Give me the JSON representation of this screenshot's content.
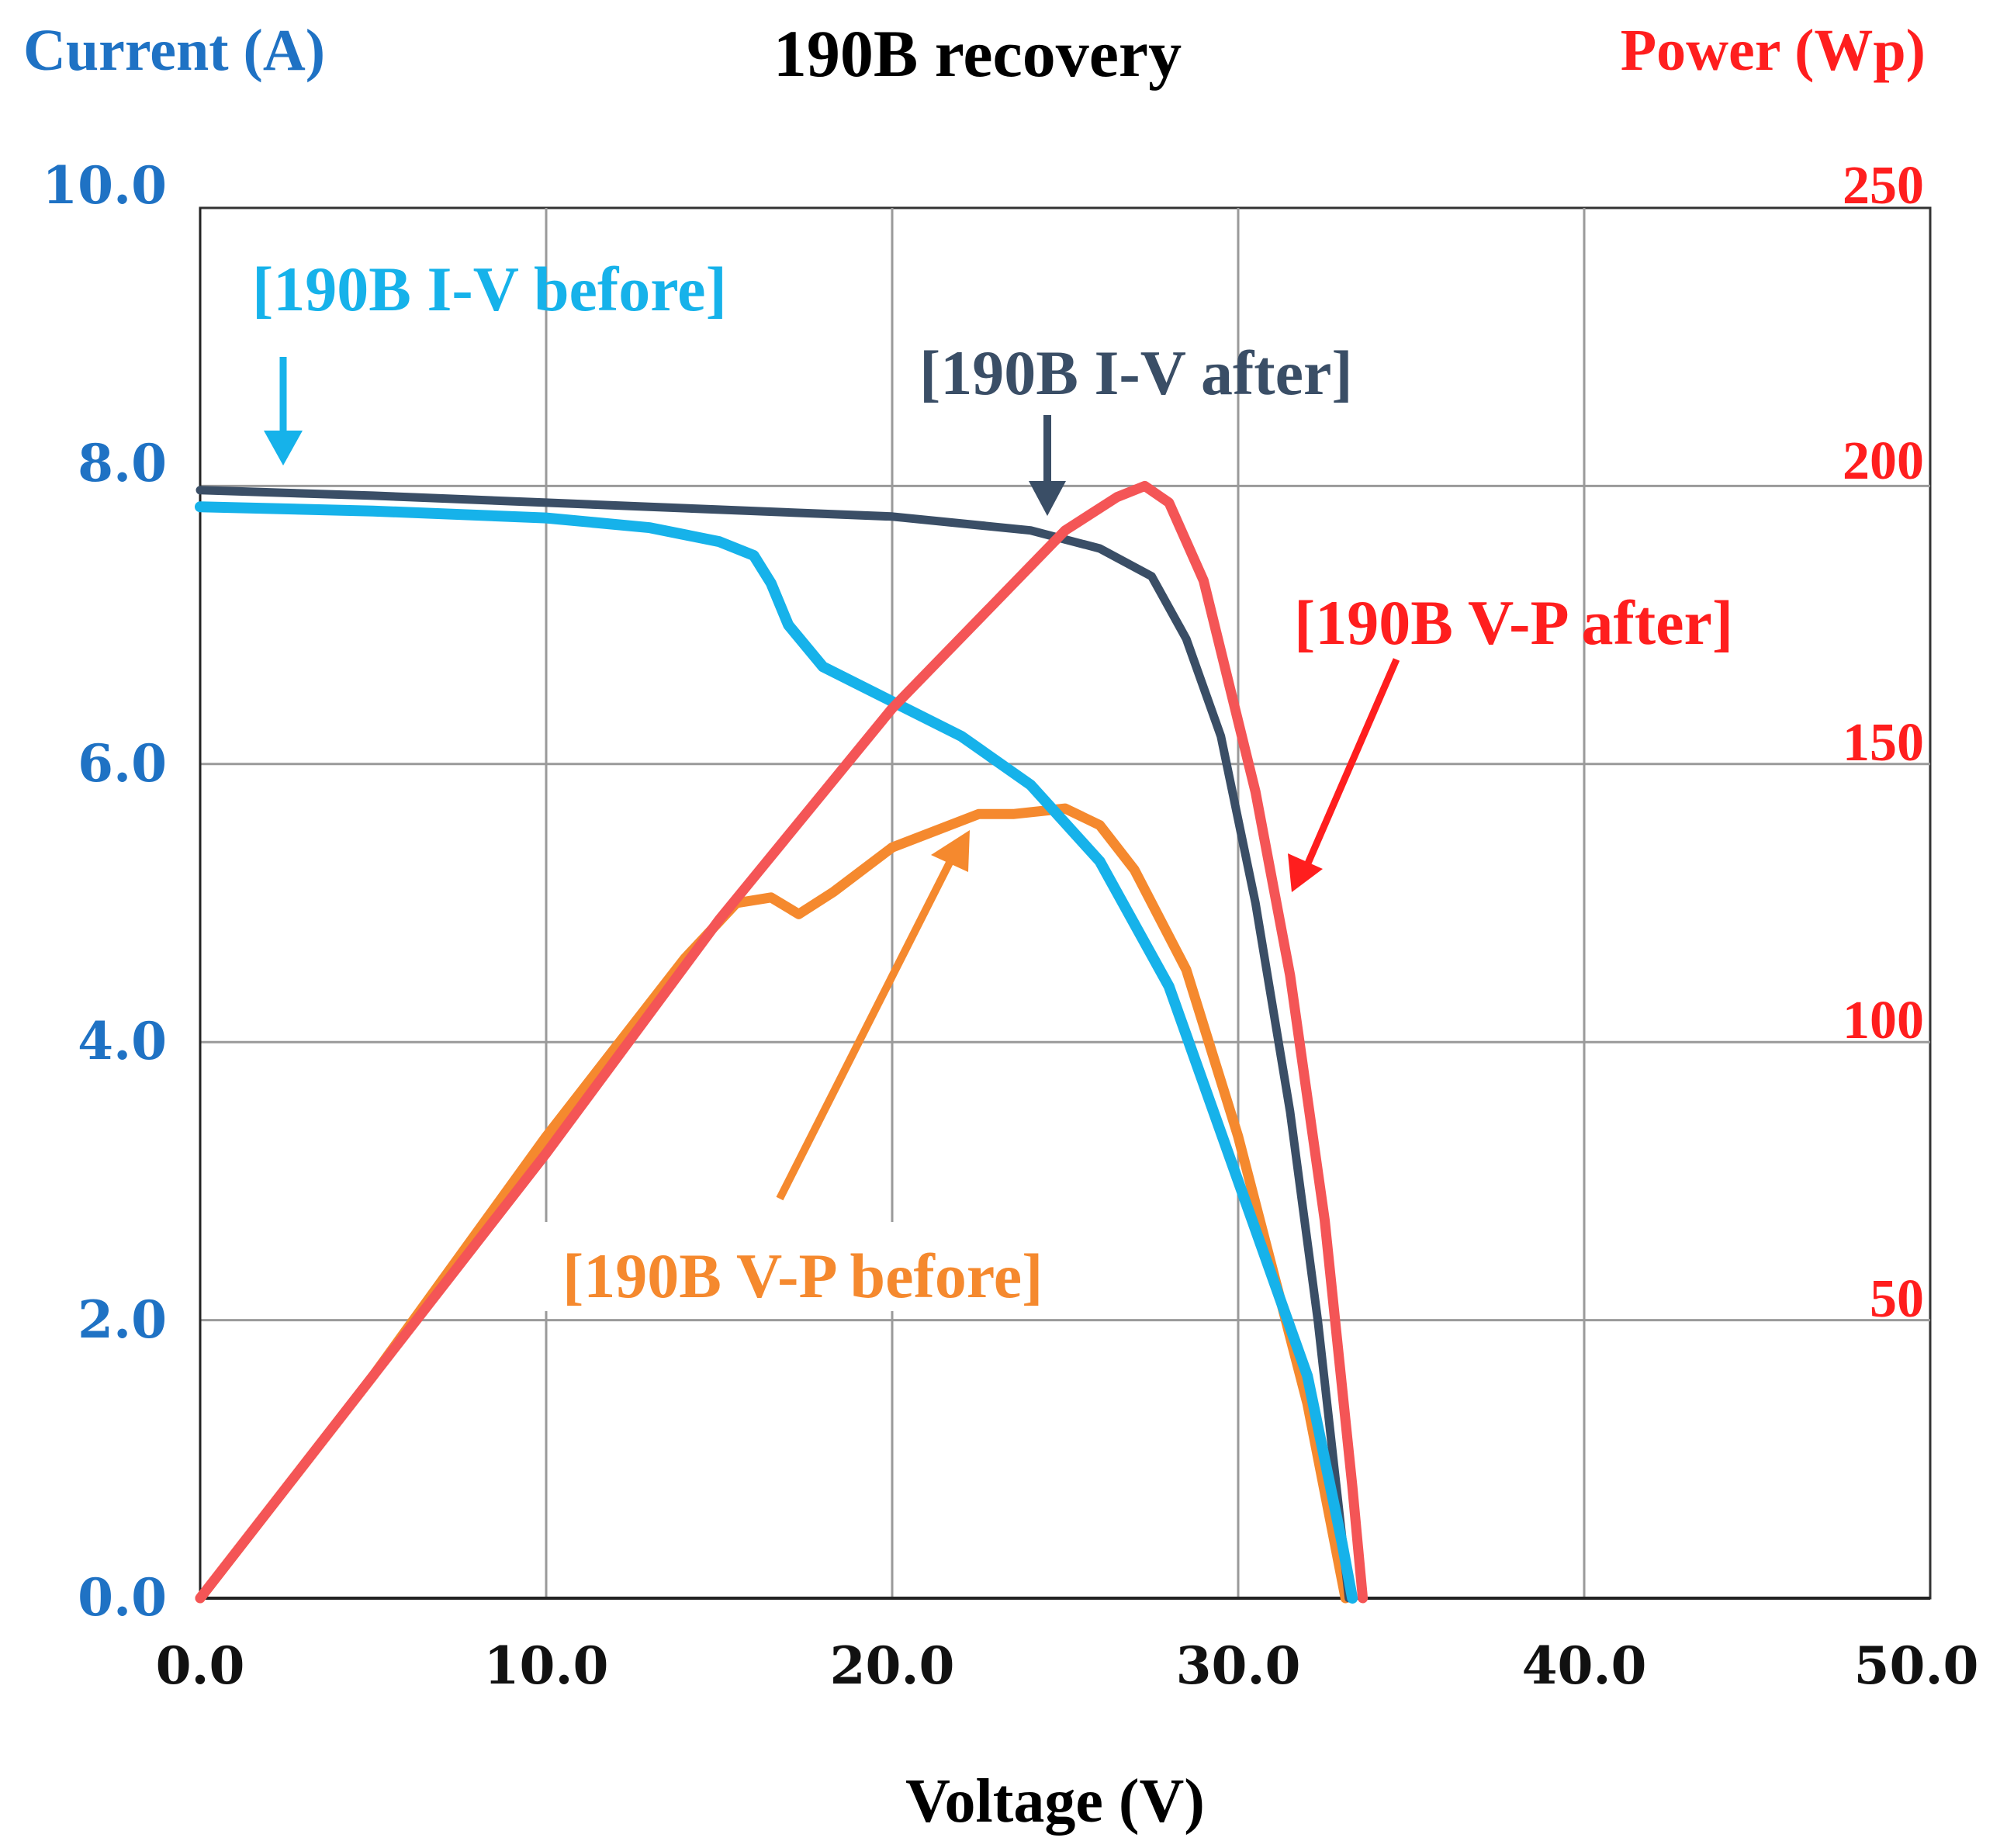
{
  "chart_data": {
    "type": "line",
    "title": "190B recovery",
    "xlabel": "Voltage (V)",
    "ylabel_left": "Current (A)",
    "ylabel_right": "Power (Wp)",
    "xlim": [
      0,
      50
    ],
    "ylim_left": [
      0,
      10
    ],
    "ylim_right": [
      0,
      250
    ],
    "grid": true,
    "x_ticks": [
      "0.0",
      "10.0",
      "20.0",
      "30.0",
      "40.0",
      "50.0"
    ],
    "y_left_ticks": [
      "0.0",
      "2.0",
      "4.0",
      "6.0",
      "8.0",
      "10.0"
    ],
    "y_right_ticks": [
      "50",
      "100",
      "150",
      "200",
      "250"
    ],
    "colors": {
      "left_axis": "#1f72c4",
      "right_axis": "#ff1e1e",
      "iv_before": "#16b2ea",
      "iv_after": "#3a4e66",
      "vp_before": "#f5892e",
      "vp_after": "#f45556",
      "title": "#000000"
    },
    "series": [
      {
        "name": "[190B I-V before]",
        "axis": "left",
        "color": "#16b2ea",
        "x": [
          0,
          5,
          10,
          13,
          15,
          16,
          16.5,
          17,
          18,
          20,
          22,
          24,
          26,
          28,
          30,
          32,
          33,
          33.3
        ],
        "values": [
          7.85,
          7.82,
          7.77,
          7.7,
          7.6,
          7.5,
          7.3,
          7.0,
          6.7,
          6.45,
          6.2,
          5.85,
          5.3,
          4.4,
          3.0,
          1.6,
          0.4,
          0
        ]
      },
      {
        "name": "[190B I-V after]",
        "axis": "left",
        "color": "#3a4e66",
        "x": [
          0,
          5,
          10,
          15,
          20,
          24,
          26,
          27.5,
          28.5,
          29.5,
          30.5,
          31.5,
          32.3,
          33.2
        ],
        "values": [
          7.97,
          7.93,
          7.88,
          7.83,
          7.78,
          7.68,
          7.55,
          7.35,
          6.9,
          6.2,
          5.0,
          3.5,
          2.0,
          0
        ]
      },
      {
        "name": "[190B V-P before]",
        "axis": "right",
        "color": "#f5892e",
        "x": [
          0,
          5,
          10,
          14,
          15.5,
          16.5,
          17.3,
          18.3,
          20,
          22.5,
          23.5,
          25,
          26,
          27,
          28.5,
          30,
          32,
          33.1
        ],
        "values": [
          0,
          40,
          83,
          115,
          125,
          126,
          123,
          127,
          135,
          141,
          141,
          142,
          139,
          131,
          113,
          83,
          35,
          0
        ]
      },
      {
        "name": "[190B V-P after]",
        "axis": "right",
        "color": "#f45556",
        "x": [
          0,
          5,
          10,
          15,
          20,
          25,
          26.5,
          27.3,
          28,
          29,
          30.5,
          31.5,
          32.5,
          33.3,
          33.6
        ],
        "values": [
          0,
          40,
          80,
          122,
          160,
          192,
          198,
          200,
          197,
          183,
          145,
          112,
          68,
          20,
          0
        ]
      }
    ],
    "annotations": [
      {
        "text": "[190B I-V before]",
        "color": "#16b2ea",
        "target_series": "[190B I-V before]"
      },
      {
        "text": "[190B I-V after]",
        "color": "#3a4e66",
        "target_series": "[190B I-V after]"
      },
      {
        "text": "[190B V-P after]",
        "color": "#ff1e1e",
        "target_series": "[190B V-P after]"
      },
      {
        "text": "[190B V-P before]",
        "color": "#f5892e",
        "target_series": "[190B V-P before]"
      }
    ]
  }
}
